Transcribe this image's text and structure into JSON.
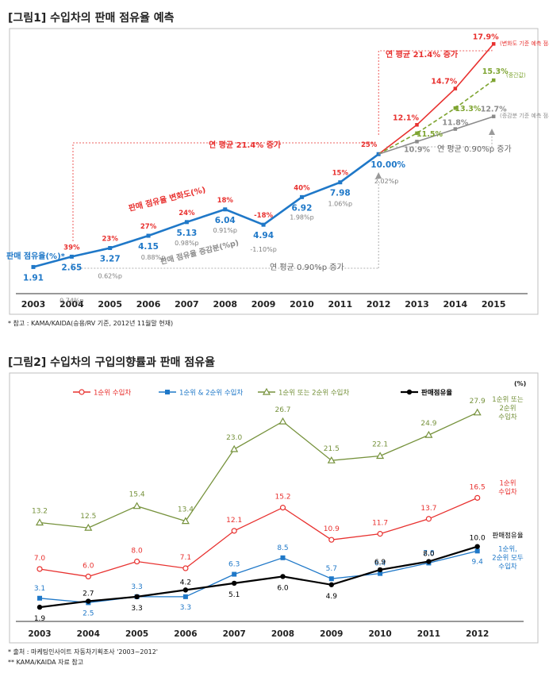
{
  "chart_data": [
    {
      "type": "line",
      "title": "[그림1] 수입차의 판매 점유율 예측",
      "x": [
        "2003",
        "2004",
        "2005",
        "2006",
        "2007",
        "2008",
        "2009",
        "2010",
        "2011",
        "2012",
        "2013",
        "2014",
        "2015"
      ],
      "ylim": [
        0,
        19
      ],
      "grid": false,
      "series": [
        {
          "name": "판매 점유율(%)*",
          "color": "#1f78c8",
          "x": [
            "2003",
            "2004",
            "2005",
            "2006",
            "2007",
            "2008",
            "2009",
            "2010",
            "2011",
            "2012"
          ],
          "values": [
            1.91,
            2.65,
            3.27,
            4.15,
            5.13,
            6.04,
            4.94,
            6.92,
            7.98,
            10.0
          ],
          "labels": [
            "1.91",
            "2.65",
            "3.27",
            "4.15",
            "5.13",
            "6.04",
            "4.94",
            "6.92",
            "7.98",
            "10.00%"
          ]
        },
        {
          "name": "",
          "color": "#e8312f",
          "x": [
            "2012",
            "2013",
            "2014",
            "2015"
          ],
          "values": [
            10.0,
            12.1,
            14.7,
            17.9
          ],
          "labels": [
            "12.1%",
            "14.7%",
            "17.9%"
          ],
          "end_note": "(변화도 기준 예측 점유율)"
        },
        {
          "name": "",
          "color": "#7ea431",
          "dashed": true,
          "x": [
            "2012",
            "2013",
            "2014",
            "2015"
          ],
          "values": [
            10.0,
            11.5,
            13.3,
            15.3
          ],
          "labels": [
            "11.5%",
            "13.3%",
            "15.3%"
          ],
          "end_note": "(중간값)"
        },
        {
          "name": "",
          "color": "#8c8c8c",
          "x": [
            "2012",
            "2013",
            "2014",
            "2015"
          ],
          "values": [
            10.0,
            10.9,
            11.8,
            12.7
          ],
          "labels": [
            "10.9%",
            "11.8%",
            "12.7%"
          ],
          "end_note": "(증감분 기준 예측 점유율)"
        }
      ],
      "change_rate": {
        "name": "판매 점유율 변화도(%)",
        "x": [
          "2004",
          "2005",
          "2006",
          "2007",
          "2008",
          "2009",
          "2010",
          "2011",
          "2012"
        ],
        "labels": [
          "39%",
          "23%",
          "27%",
          "24%",
          "18%",
          "-18%",
          "40%",
          "15%",
          "25%"
        ]
      },
      "change_points": {
        "name": "판매 점유율 증감분(%p)",
        "x": [
          "2004",
          "2005",
          "2006",
          "2007",
          "2008",
          "2009",
          "2010",
          "2011",
          "2012"
        ],
        "labels": [
          "0.74%p",
          "0.62%p",
          "0.88%p",
          "0.98%p",
          "0.91%p",
          "-1.10%p",
          "1.98%p",
          "1.06%p",
          "2.02%p"
        ]
      },
      "annotations": [
        "연 평균 21.4% 증가",
        "연 평균 21.4% 증가",
        "연 평균 0.90%p 증가",
        "연 평균 0.90%p 증가"
      ],
      "footnote": "* 참고 : KAMA/KAIDA(승용/RV 기준, 2012년 11월말 현재)"
    },
    {
      "type": "line",
      "title": "[그림2] 수입차의 구입의향률과 판매 점유율",
      "unit": "(%)",
      "x": [
        "2003",
        "2004",
        "2005",
        "2006",
        "2007",
        "2008",
        "2009",
        "2010",
        "2011",
        "2012"
      ],
      "ylim": [
        0,
        30
      ],
      "grid": false,
      "legend": "top",
      "series": [
        {
          "name": "1순위 수입차",
          "color": "#e8312f",
          "marker": "circle-open",
          "values": [
            7.0,
            6.0,
            8.0,
            7.1,
            12.1,
            15.2,
            10.9,
            11.7,
            13.7,
            16.5
          ],
          "end_label": "1순위 수입차"
        },
        {
          "name": "1순위 & 2순위 수입차",
          "color": "#1f78c8",
          "marker": "square",
          "values": [
            3.1,
            2.5,
            3.3,
            3.3,
            6.3,
            8.5,
            5.7,
            6.4,
            7.8,
            9.4
          ],
          "end_label": "1순위, 2순위 모두 수입차"
        },
        {
          "name": "1순위 또는 2순위 수입차",
          "color": "#76923c",
          "marker": "triangle-open",
          "values": [
            13.2,
            12.5,
            15.4,
            13.4,
            23.0,
            26.7,
            21.5,
            22.1,
            24.9,
            27.9
          ],
          "end_label": "1순위 또는 2순위 수입차"
        },
        {
          "name": "판매점유율",
          "color": "#000000",
          "marker": "circle",
          "values": [
            1.9,
            2.7,
            3.3,
            4.2,
            5.1,
            6.0,
            4.9,
            6.9,
            8.0,
            10.0
          ],
          "end_label": "판매점유율"
        }
      ],
      "footnotes": [
        "* 출처 : 마케팅인사이트 자동차기획조사 '2003~2012'",
        "** KAMA/KAIDA 자료 참고"
      ]
    }
  ]
}
